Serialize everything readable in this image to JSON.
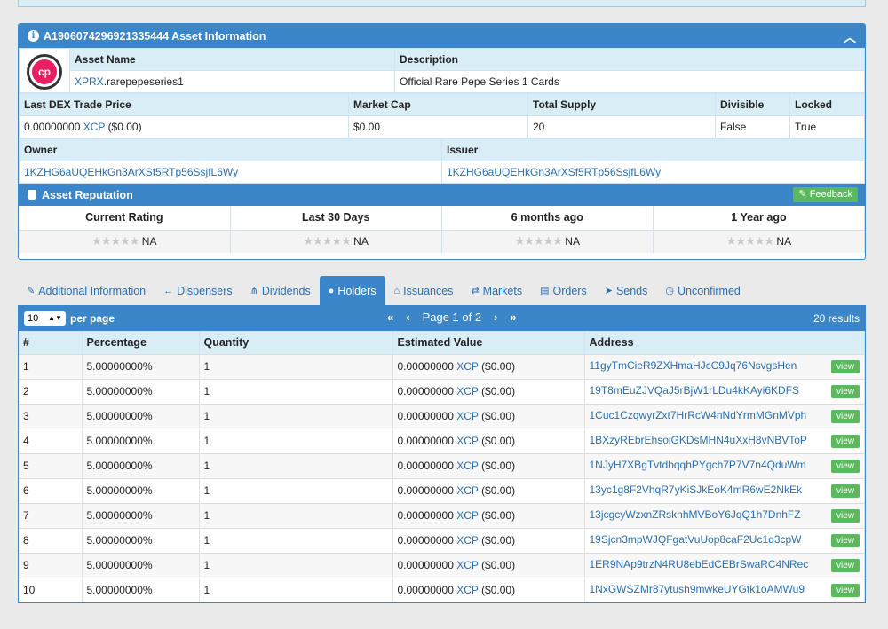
{
  "asset_panel": {
    "title": "A1906074296921335444 Asset Information",
    "asset_name_header": "Asset Name",
    "description_header": "Description",
    "asset_name_link": "XPRX",
    "asset_name_rest": ".rarepepeseries1",
    "description": "Official Rare Pepe Series 1 Cards",
    "logo_text": "cp",
    "stats_headers": [
      "Last DEX Trade Price",
      "Market Cap",
      "Total Supply",
      "Divisible",
      "Locked"
    ],
    "last_price_num": "0.00000000",
    "last_price_link": "XCP",
    "last_price_usd": "($0.00)",
    "market_cap": "$0.00",
    "total_supply": "20",
    "divisible": "False",
    "locked": "True",
    "owner_header": "Owner",
    "issuer_header": "Issuer",
    "owner": "1KZHG6aUQEHkGn3ArXSf5RTp56SsjfL6Wy",
    "issuer": "1KZHG6aUQEHkGn3ArXSf5RTp56SsjfL6Wy"
  },
  "reputation": {
    "title": "Asset Reputation",
    "feedback_label": "Feedback",
    "columns": [
      "Current Rating",
      "Last 30 Days",
      "6 months ago",
      "1 Year ago"
    ],
    "rating_text": "NA",
    "stars": "★★★★★"
  },
  "tabs": [
    {
      "label": "Additional Information",
      "icon": "✎"
    },
    {
      "label": "Dispensers",
      "icon": "↔"
    },
    {
      "label": "Dividends",
      "icon": "⋔"
    },
    {
      "label": "Holders",
      "icon": "●"
    },
    {
      "label": "Issuances",
      "icon": "⌂"
    },
    {
      "label": "Markets",
      "icon": "⇄"
    },
    {
      "label": "Orders",
      "icon": "▤"
    },
    {
      "label": "Sends",
      "icon": "➤"
    },
    {
      "label": "Unconfirmed",
      "icon": "◷"
    }
  ],
  "holders": {
    "per_page_value": "10",
    "per_page_label": "per page",
    "page_label": "Page 1 of 2",
    "results": "20 results",
    "headers": [
      "#",
      "Percentage",
      "Quantity",
      "Estimated Value",
      "Address"
    ],
    "view_label": "view",
    "value_num": "0.00000000",
    "value_link": "XCP",
    "value_usd": "($0.00)",
    "rows": [
      {
        "n": "1",
        "pct": "5.00000000%",
        "qty": "1",
        "addr": "11gyTmCieR9ZXHmaHJcC9Jq76NsvgsHen"
      },
      {
        "n": "2",
        "pct": "5.00000000%",
        "qty": "1",
        "addr": "19T8mEuZJVQaJ5rBjW1rLDu4kKAyi6KDFS"
      },
      {
        "n": "3",
        "pct": "5.00000000%",
        "qty": "1",
        "addr": "1Cuc1CzqwyrZxt7HrRcW4nNdYrmMGnMVph"
      },
      {
        "n": "4",
        "pct": "5.00000000%",
        "qty": "1",
        "addr": "1BXzyREbrEhsoiGKDsMHN4uXxH8vNBVToP"
      },
      {
        "n": "5",
        "pct": "5.00000000%",
        "qty": "1",
        "addr": "1NJyH7XBgTvtdbqqhPYgch7P7V7n4QduWm"
      },
      {
        "n": "6",
        "pct": "5.00000000%",
        "qty": "1",
        "addr": "13yc1g8F2VhqR7yKiSJkEoK4mR6wE2NkEk"
      },
      {
        "n": "7",
        "pct": "5.00000000%",
        "qty": "1",
        "addr": "13jcgcyWzxnZRsknhMVBoY6JqQ1h7DnhFZ"
      },
      {
        "n": "8",
        "pct": "5.00000000%",
        "qty": "1",
        "addr": "19Sjcn3mpWJQFgatVuUop8caF2Uc1q3cpW"
      },
      {
        "n": "9",
        "pct": "5.00000000%",
        "qty": "1",
        "addr": "1ER9NAp9trzN4RU8ebEdCEBrSwaRC4NRec"
      },
      {
        "n": "10",
        "pct": "5.00000000%",
        "qty": "1",
        "addr": "1NxGWSZMr87ytush9mwkeUYGtk1oAMWu9"
      }
    ]
  }
}
